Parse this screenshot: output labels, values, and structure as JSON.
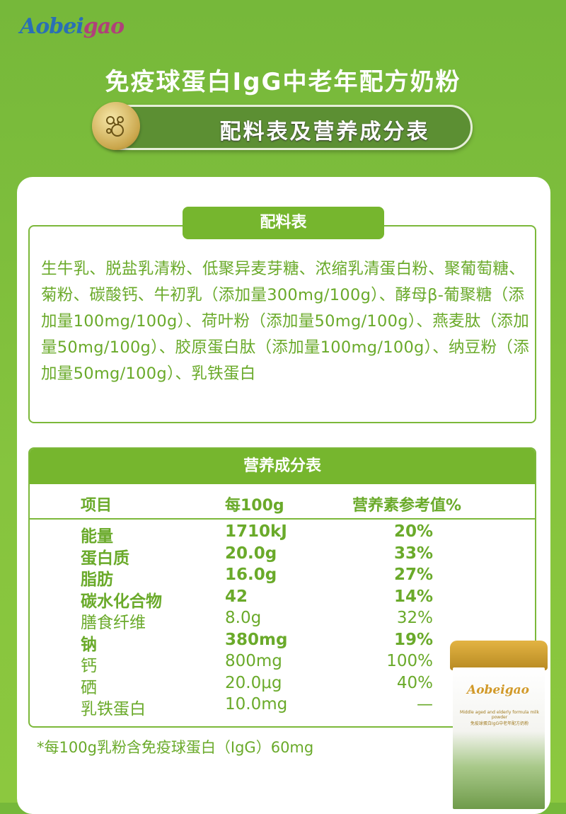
{
  "brand": {
    "logo": "Aobeigao"
  },
  "title": "免疫球蛋白IgG中老年配方奶粉",
  "banner": {
    "label": "配料表及营养成分表",
    "icon": "molecule-icon"
  },
  "ingredients": {
    "heading": "配料表",
    "text": "生牛乳、脱盐乳清粉、低聚异麦芽糖、浓缩乳清蛋白粉、聚葡萄糖、菊粉、碳酸钙、牛初乳（添加量300mg/100g）、酵母β-葡聚糖（添加量100mg/100g）、荷叶粉（添加量50mg/100g）、燕麦肽（添加量50mg/100g）、胶原蛋白肽（添加量100mg/100g）、纳豆粉（添加量50mg/100g）、乳铁蛋白"
  },
  "nutrition": {
    "heading": "营养成分表",
    "columns": [
      "项目",
      "每100g",
      "营养素参考值%"
    ],
    "rows": [
      {
        "item": "能量",
        "per100g": "1710kJ",
        "nrv": "20%",
        "bold": true
      },
      {
        "item": "蛋白质",
        "per100g": "20.0g",
        "nrv": "33%",
        "bold": true
      },
      {
        "item": "脂肪",
        "per100g": "16.0g",
        "nrv": "27%",
        "bold": true
      },
      {
        "item": "碳水化合物",
        "per100g": "42",
        "nrv": "14%",
        "bold": true
      },
      {
        "item": "膳食纤维",
        "per100g": "8.0g",
        "nrv": "32%",
        "bold": false
      },
      {
        "item": "钠",
        "per100g": "380mg",
        "nrv": "19%",
        "bold": true
      },
      {
        "item": "钙",
        "per100g": "800mg",
        "nrv": "100%",
        "bold": false
      },
      {
        "item": "硒",
        "per100g": "20.0μg",
        "nrv": "40%",
        "bold": false
      },
      {
        "item": "乳铁蛋白",
        "per100g": "10.0mg",
        "nrv": "—",
        "bold": false
      }
    ]
  },
  "footnote": "*每100g乳粉含免疫球蛋白（IgG）60mg",
  "product_can": {
    "logo": "Aobeigao",
    "subtitle": "Middle aged and elderly formula milk powder",
    "name": "免疫球蛋白IgG中老年配方奶粉"
  },
  "colors": {
    "green": "#76b62e",
    "text_green": "#6aaa2a",
    "background": "#7cbf3a"
  }
}
